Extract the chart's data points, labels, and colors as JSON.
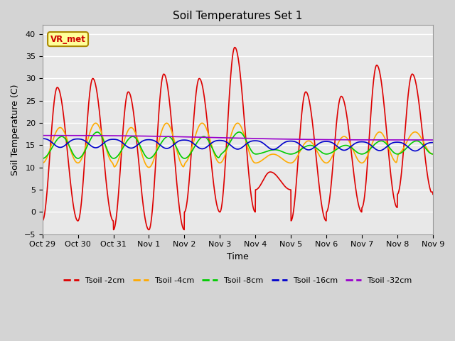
{
  "title": "Soil Temperatures Set 1",
  "xlabel": "Time",
  "ylabel": "Soil Temperature (C)",
  "ylim": [
    -5,
    42
  ],
  "yticks": [
    -5,
    0,
    5,
    10,
    15,
    20,
    25,
    30,
    35,
    40
  ],
  "fig_facecolor": "#d4d4d4",
  "ax_facecolor": "#e8e8e8",
  "annotation_text": "VR_met",
  "annotation_color": "#cc0000",
  "annotation_bg": "#ffff99",
  "annotation_border": "#aa8800",
  "series_colors": {
    "Tsoil -2cm": "#dd0000",
    "Tsoil -4cm": "#ffaa00",
    "Tsoil -8cm": "#00cc00",
    "Tsoil -16cm": "#0000cc",
    "Tsoil -32cm": "#9900cc"
  },
  "line_width": 1.2,
  "grid_color": "#ffffff",
  "tick_positions": [
    0,
    1,
    2,
    3,
    4,
    5,
    6,
    7,
    8,
    9,
    10,
    11
  ],
  "tick_labels": [
    "Oct 29",
    "Oct 30",
    "Oct 31",
    "Nov 1",
    "Nov 2",
    "Nov 3",
    "Nov 4",
    "Nov 5",
    "Nov 6",
    "Nov 7",
    "Nov 8",
    "Nov 9"
  ],
  "figsize": [
    6.4,
    4.8
  ],
  "dpi": 100
}
